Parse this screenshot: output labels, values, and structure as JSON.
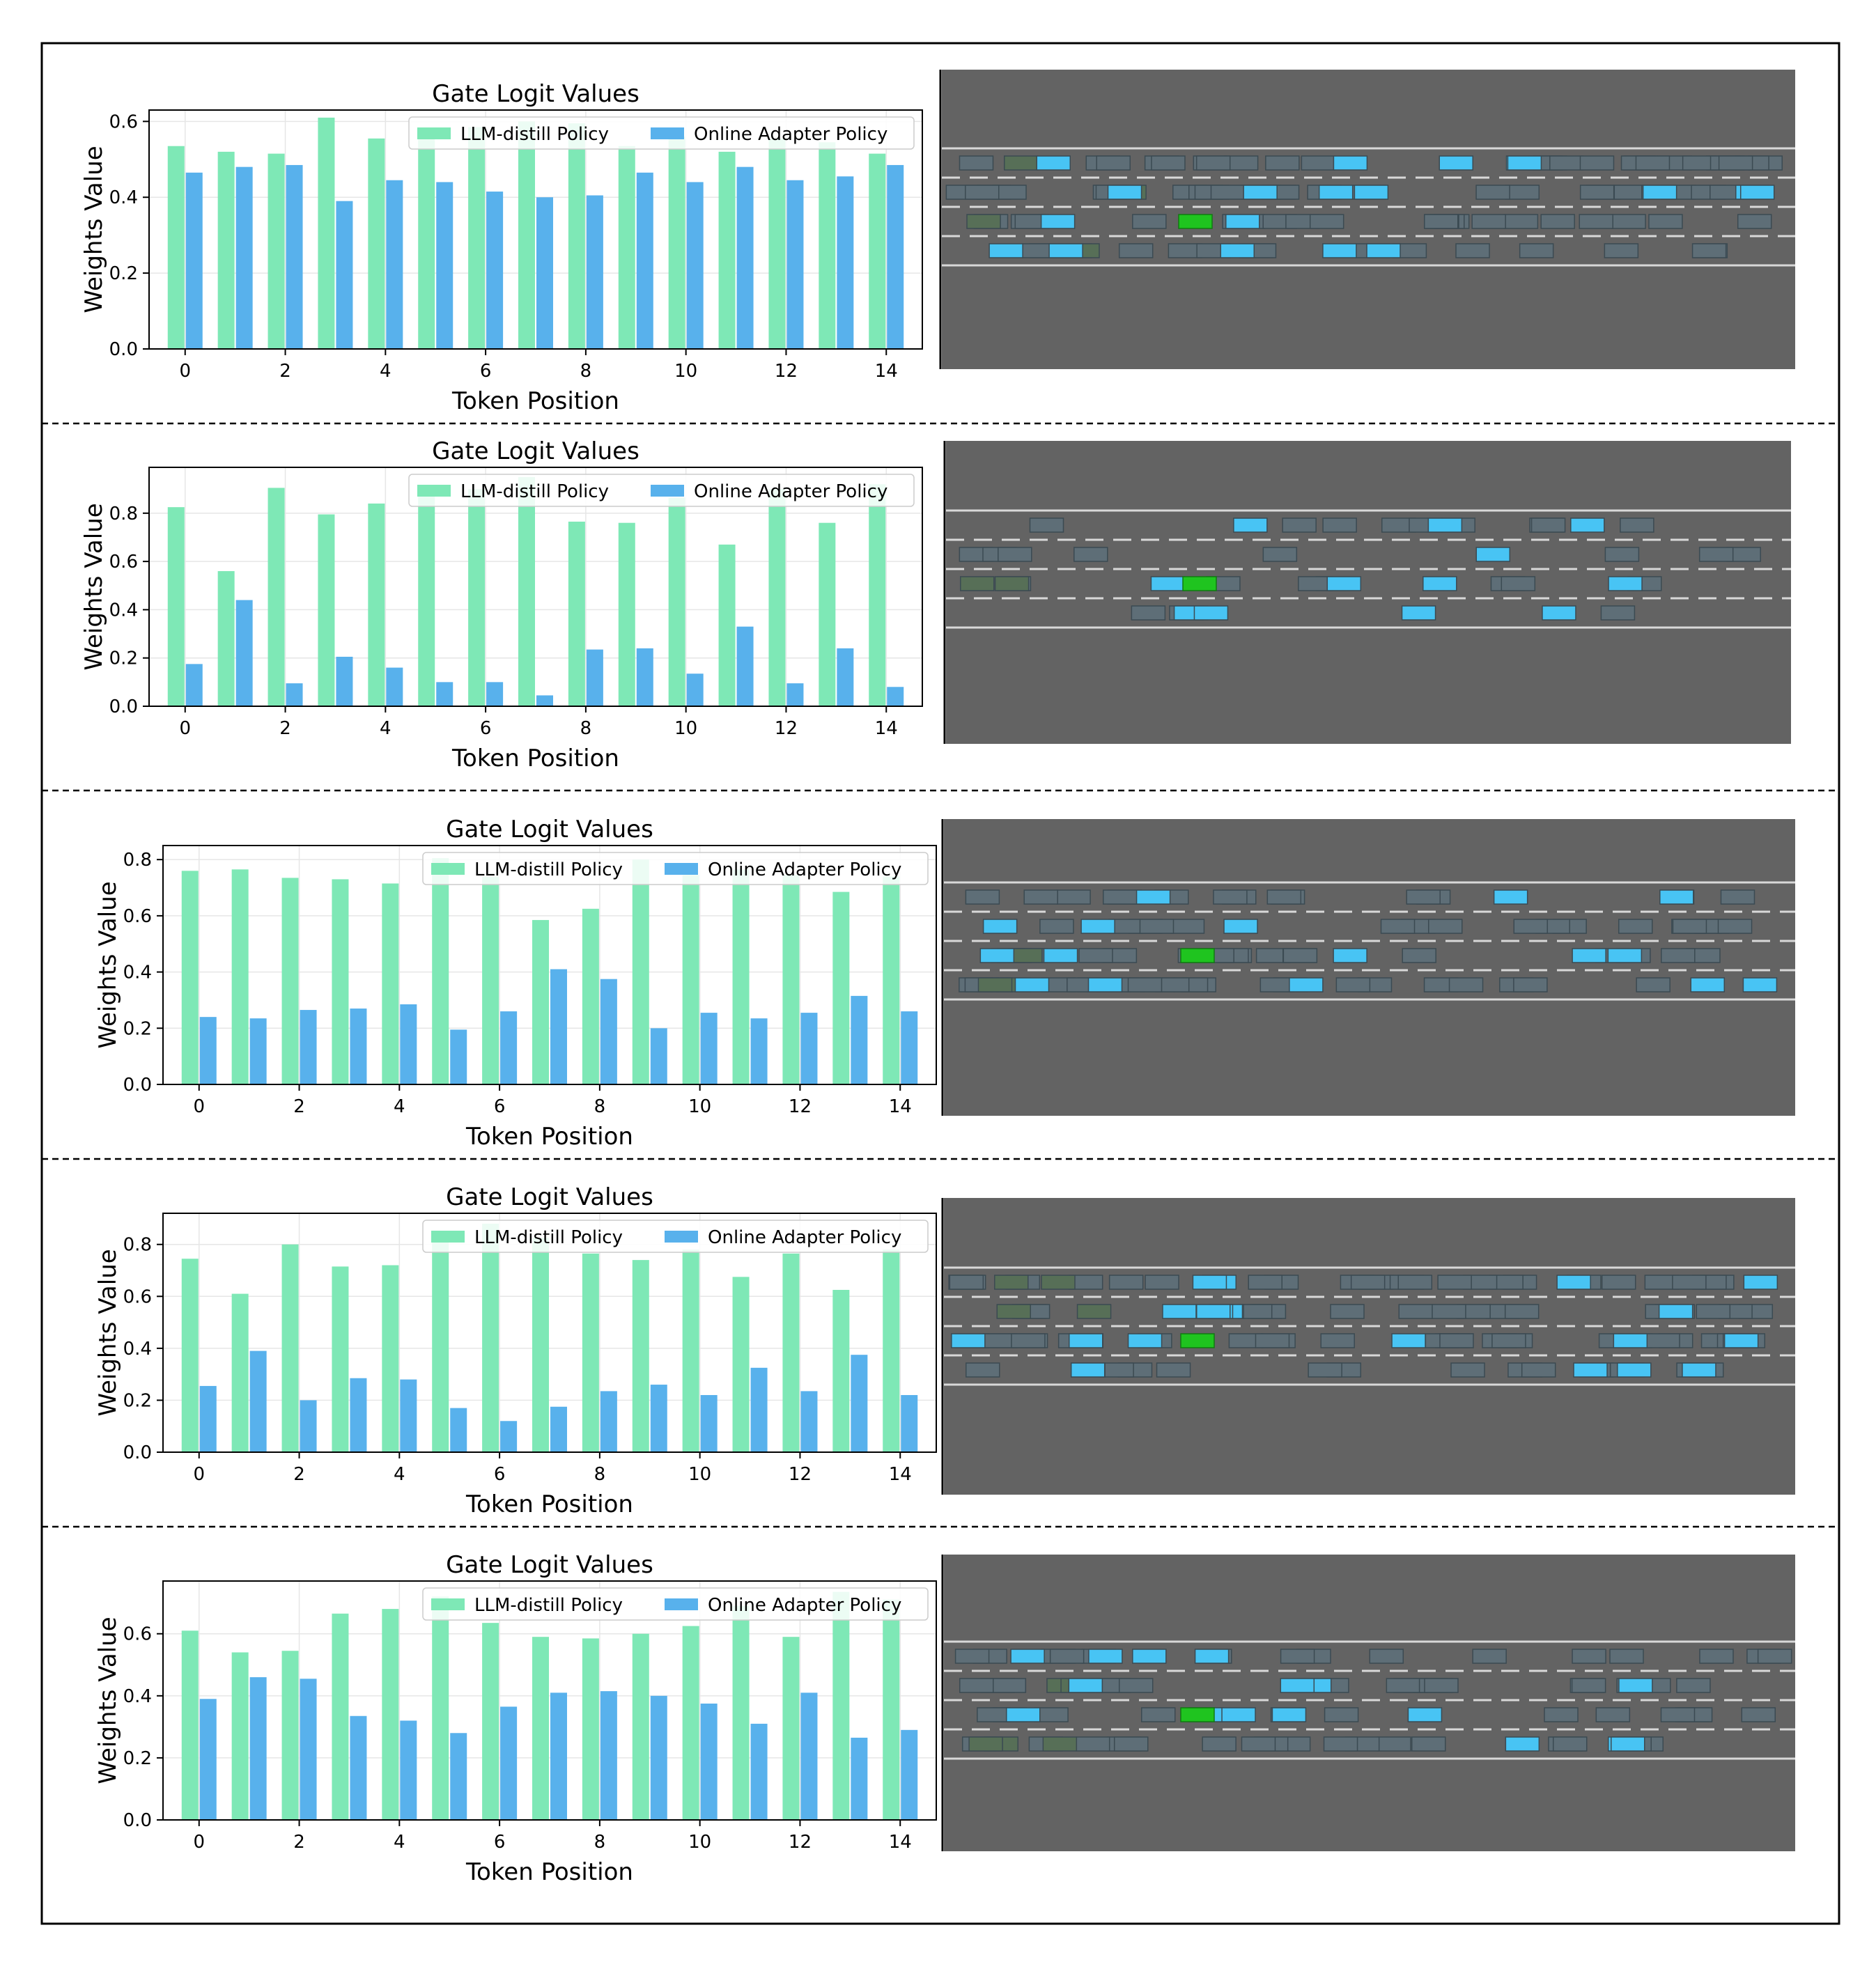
{
  "colors": {
    "llm": "#7EE8B6",
    "online": "#58B1EC",
    "road": "#636363",
    "lane_line": "#d8d8d8",
    "vehicle_gray": "#5e6e77",
    "vehicle_blue": "#48c4f4",
    "vehicle_olive": "#576f57",
    "ego_green": "#1fc41f"
  },
  "chart_data": [
    {
      "type": "bar",
      "title": "Gate Logit Values",
      "xlabel": "Token Position",
      "ylabel": "Weights Value",
      "categories": [
        0,
        1,
        2,
        3,
        4,
        5,
        6,
        7,
        8,
        9,
        10,
        11,
        12,
        13,
        14
      ],
      "xticks": [
        "0",
        "2",
        "4",
        "6",
        "8",
        "10",
        "12",
        "14"
      ],
      "yticks": [
        "0.0",
        "0.2",
        "0.4",
        "0.6"
      ],
      "ylim": [
        0,
        0.63
      ],
      "grid": true,
      "legend": "top-right",
      "series": [
        {
          "name": "LLM-distill Policy",
          "values": [
            0.535,
            0.52,
            0.515,
            0.61,
            0.555,
            0.56,
            0.585,
            0.6,
            0.595,
            0.535,
            0.56,
            0.52,
            0.555,
            0.545,
            0.515
          ]
        },
        {
          "name": "Online Adapter Policy",
          "values": [
            0.465,
            0.48,
            0.485,
            0.39,
            0.445,
            0.44,
            0.415,
            0.4,
            0.405,
            0.465,
            0.44,
            0.48,
            0.445,
            0.455,
            0.485
          ]
        }
      ]
    },
    {
      "type": "bar",
      "title": "Gate Logit Values",
      "xlabel": "Token Position",
      "ylabel": "Weights Value",
      "categories": [
        0,
        1,
        2,
        3,
        4,
        5,
        6,
        7,
        8,
        9,
        10,
        11,
        12,
        13,
        14
      ],
      "xticks": [
        "0",
        "2",
        "4",
        "6",
        "8",
        "10",
        "12",
        "14"
      ],
      "yticks": [
        "0.0",
        "0.2",
        "0.4",
        "0.6",
        "0.8"
      ],
      "ylim": [
        0,
        0.99
      ],
      "grid": true,
      "legend": "top-right",
      "series": [
        {
          "name": "LLM-distill Policy",
          "values": [
            0.825,
            0.56,
            0.905,
            0.795,
            0.84,
            0.9,
            0.9,
            0.95,
            0.765,
            0.76,
            0.865,
            0.67,
            0.9,
            0.76,
            0.92
          ]
        },
        {
          "name": "Online Adapter Policy",
          "values": [
            0.175,
            0.44,
            0.095,
            0.205,
            0.16,
            0.1,
            0.1,
            0.045,
            0.235,
            0.24,
            0.135,
            0.33,
            0.095,
            0.24,
            0.08
          ]
        }
      ]
    },
    {
      "type": "bar",
      "title": "Gate Logit Values",
      "xlabel": "Token Position",
      "ylabel": "Weights Value",
      "categories": [
        0,
        1,
        2,
        3,
        4,
        5,
        6,
        7,
        8,
        9,
        10,
        11,
        12,
        13,
        14
      ],
      "xticks": [
        "0",
        "2",
        "4",
        "6",
        "8",
        "10",
        "12",
        "14"
      ],
      "yticks": [
        "0.0",
        "0.2",
        "0.4",
        "0.6",
        "0.8"
      ],
      "ylim": [
        0,
        0.85
      ],
      "grid": true,
      "legend": "top-right",
      "series": [
        {
          "name": "LLM-distill Policy",
          "values": [
            0.76,
            0.765,
            0.735,
            0.73,
            0.715,
            0.805,
            0.74,
            0.585,
            0.625,
            0.8,
            0.745,
            0.765,
            0.745,
            0.685,
            0.74
          ]
        },
        {
          "name": "Online Adapter Policy",
          "values": [
            0.24,
            0.235,
            0.265,
            0.27,
            0.285,
            0.195,
            0.26,
            0.41,
            0.375,
            0.2,
            0.255,
            0.235,
            0.255,
            0.315,
            0.26
          ]
        }
      ]
    },
    {
      "type": "bar",
      "title": "Gate Logit Values",
      "xlabel": "Token Position",
      "ylabel": "Weights Value",
      "categories": [
        0,
        1,
        2,
        3,
        4,
        5,
        6,
        7,
        8,
        9,
        10,
        11,
        12,
        13,
        14
      ],
      "xticks": [
        "0",
        "2",
        "4",
        "6",
        "8",
        "10",
        "12",
        "14"
      ],
      "yticks": [
        "0.0",
        "0.2",
        "0.4",
        "0.6",
        "0.8"
      ],
      "ylim": [
        0,
        0.92
      ],
      "grid": true,
      "legend": "top-right",
      "series": [
        {
          "name": "LLM-distill Policy",
          "values": [
            0.745,
            0.61,
            0.8,
            0.715,
            0.72,
            0.83,
            0.88,
            0.825,
            0.765,
            0.74,
            0.78,
            0.675,
            0.765,
            0.625,
            0.78
          ]
        },
        {
          "name": "Online Adapter Policy",
          "values": [
            0.255,
            0.39,
            0.2,
            0.285,
            0.28,
            0.17,
            0.12,
            0.175,
            0.235,
            0.26,
            0.22,
            0.325,
            0.235,
            0.375,
            0.22
          ]
        }
      ]
    },
    {
      "type": "bar",
      "title": "Gate Logit Values",
      "xlabel": "Token Position",
      "ylabel": "Weights Value",
      "categories": [
        0,
        1,
        2,
        3,
        4,
        5,
        6,
        7,
        8,
        9,
        10,
        11,
        12,
        13,
        14
      ],
      "xticks": [
        "0",
        "2",
        "4",
        "6",
        "8",
        "10",
        "12",
        "14"
      ],
      "yticks": [
        "0.0",
        "0.2",
        "0.4",
        "0.6"
      ],
      "ylim": [
        0,
        0.77
      ],
      "grid": true,
      "legend": "top-right",
      "series": [
        {
          "name": "LLM-distill Policy",
          "values": [
            0.61,
            0.54,
            0.545,
            0.665,
            0.68,
            0.72,
            0.635,
            0.59,
            0.585,
            0.6,
            0.625,
            0.69,
            0.59,
            0.735,
            0.71
          ]
        },
        {
          "name": "Online Adapter Policy",
          "values": [
            0.39,
            0.46,
            0.455,
            0.335,
            0.32,
            0.28,
            0.365,
            0.41,
            0.415,
            0.4,
            0.375,
            0.31,
            0.41,
            0.265,
            0.29
          ]
        }
      ]
    }
  ],
  "scenes": [
    {
      "lanes": 4,
      "vehicles": {
        "gray": 84,
        "blue": 19,
        "olive": 4,
        "ego": 1
      }
    },
    {
      "lanes": 4,
      "vehicles": {
        "gray": 27,
        "blue": 12,
        "olive": 2,
        "ego": 1
      }
    },
    {
      "lanes": 4,
      "vehicles": {
        "gray": 70,
        "blue": 16,
        "olive": 3,
        "ego": 1
      }
    },
    {
      "lanes": 4,
      "vehicles": {
        "gray": 84,
        "blue": 19,
        "olive": 4,
        "ego": 1
      }
    },
    {
      "lanes": 4,
      "vehicles": {
        "gray": 64,
        "blue": 16,
        "olive": 5,
        "ego": 1
      }
    }
  ]
}
